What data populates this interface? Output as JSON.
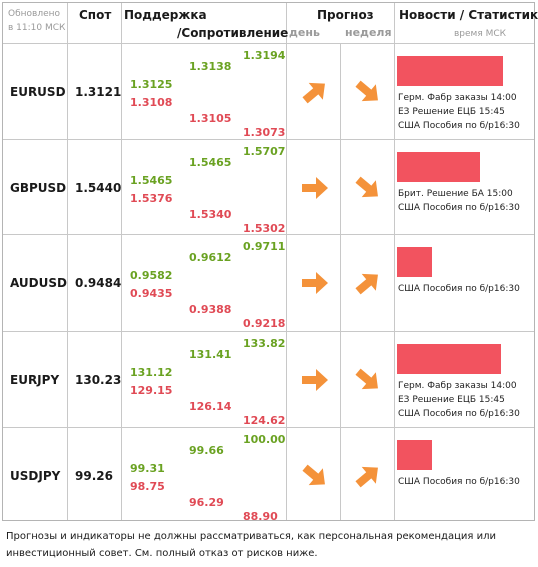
{
  "header": {
    "updated": "Обновлено",
    "updated_time": "в 11:10 МСК",
    "spot": "Спот",
    "support": "Поддержка",
    "resistance": "/Сопротивление",
    "forecast": "Прогноз",
    "forecast_day": "день",
    "forecast_week": "неделя",
    "news": "Новости / Статистика",
    "news_time": "время МСК"
  },
  "rows": [
    {
      "symbol": "EURUSD",
      "spot": "1.3121",
      "col1_green": "1.3125",
      "col1_red": "1.3108",
      "col2_green": "1.3138",
      "col2_red": "1.3105",
      "col3_green": "1.3194",
      "col3_red": "1.3073",
      "day": "up",
      "week": "down",
      "news_level": 0.9,
      "news": [
        "Герм. Фабр заказы 14:00",
        "ЕЗ Решение ЕЦБ 15:45",
        "США Пособия по б/р16:30"
      ]
    },
    {
      "symbol": "GBPUSD",
      "spot": "1.5440",
      "col1_green": "1.5465",
      "col1_red": "1.5376",
      "col2_green": "1.5465",
      "col2_red": "1.5340",
      "col3_green": "1.5707",
      "col3_red": "1.5302",
      "day": "right",
      "week": "down",
      "news_level": 0.7,
      "news": [
        "Брит.  Решение БА 15:00",
        "США Пособия по б/р16:30"
      ]
    },
    {
      "symbol": "AUDUSD",
      "spot": "0.9484",
      "col1_green": "0.9582",
      "col1_red": "0.9435",
      "col2_green": "0.9612",
      "col2_red": "0.9388",
      "col3_green": "0.9711",
      "col3_red": "0.9218",
      "day": "right",
      "week": "up",
      "news_level": 0.3,
      "news": [
        "США Пособия по б/р16:30"
      ]
    },
    {
      "symbol": "EURJPY",
      "spot": "130.23",
      "col1_green": "131.12",
      "col1_red": "129.15",
      "col2_green": "131.41",
      "col2_red": "126.14",
      "col3_green": "133.82",
      "col3_red": "124.62",
      "day": "right",
      "week": "down",
      "news_level": 0.88,
      "news": [
        "Герм. Фабр заказы 14:00",
        "ЕЗ Решение ЕЦБ 15:45",
        "США Пособия по б/р16:30"
      ]
    },
    {
      "symbol": "USDJPY",
      "spot": "99.26",
      "col1_green": "99.31",
      "col1_red": "98.75",
      "col2_green": "99.66",
      "col2_red": "96.29",
      "col3_green": "100.00",
      "col3_red": "88.90",
      "day": "down",
      "week": "up",
      "news_level": 0.3,
      "news": [
        "США Пособия по б/р16:30"
      ]
    }
  ],
  "footer": "Прогнозы и индикаторы не должны рассматриваться, как персональная рекомендация или инвестиционный совет. См. полный отказ от рисков ниже.",
  "colors": {
    "green": "#6aa222",
    "red": "#e04a55",
    "arrow": "#f4923a",
    "bar": "#f2535f"
  }
}
